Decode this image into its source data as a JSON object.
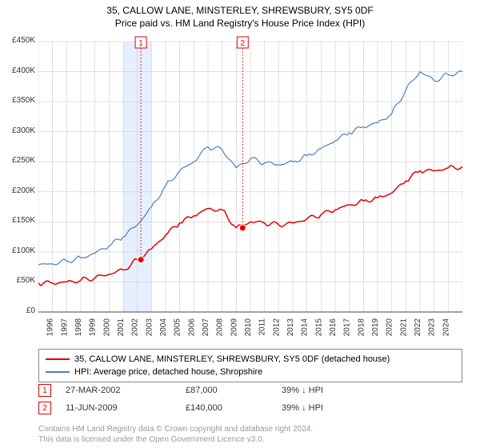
{
  "title": "35, CALLOW LANE, MINSTERLEY, SHREWSBURY, SY5 0DF",
  "subtitle": "Price paid vs. HM Land Registry's House Price Index (HPI)",
  "chart": {
    "type": "line",
    "background_color": "#ffffff",
    "grid_color": "#cccccc",
    "highlight_band_color": "#e6efff",
    "highlight_band": {
      "x_start": 2001,
      "x_end": 2003
    },
    "x_axis": {
      "min": 1995,
      "max": 2025,
      "tick_step": 1,
      "labels": [
        "1995",
        "1996",
        "1997",
        "1998",
        "1999",
        "2000",
        "2001",
        "2002",
        "2003",
        "2004",
        "2005",
        "2006",
        "2007",
        "2008",
        "2009",
        "2010",
        "2011",
        "2012",
        "2013",
        "2014",
        "2015",
        "2016",
        "2017",
        "2018",
        "2019",
        "2020",
        "2021",
        "2022",
        "2023",
        "2024"
      ],
      "fontsize": 10
    },
    "y_axis": {
      "min": 0,
      "max": 450000,
      "tick_step": 50000,
      "labels": [
        "£0",
        "£50K",
        "£100K",
        "£150K",
        "£200K",
        "£250K",
        "£300K",
        "£350K",
        "£400K",
        "£450K"
      ],
      "fontsize": 10
    },
    "series": [
      {
        "name": "35, CALLOW LANE, MINSTERLEY, SHREWSBURY, SY5 0DF (detached house)",
        "color": "#e60000",
        "line_width": 1.5,
        "x": [
          1995,
          1996,
          1997,
          1998,
          1999,
          2000,
          2001,
          2002,
          2003,
          2004,
          2005,
          2006,
          2007,
          2008,
          2009,
          2010,
          2011,
          2012,
          2013,
          2014,
          2015,
          2016,
          2017,
          2018,
          2019,
          2020,
          2021,
          2022,
          2023,
          2024,
          2025
        ],
        "y": [
          48000,
          48000,
          50000,
          53000,
          57000,
          63000,
          70000,
          87000,
          105000,
          128000,
          148000,
          160000,
          172000,
          170000,
          140000,
          150000,
          148000,
          145000,
          148000,
          155000,
          162000,
          170000,
          178000,
          185000,
          190000,
          198000,
          218000,
          235000,
          235000,
          240000,
          242000
        ]
      },
      {
        "name": "HPI: Average price, detached house, Shropshire",
        "color": "#4a7ec8",
        "line_width": 1.2,
        "x": [
          1995,
          1996,
          1997,
          1998,
          1999,
          2000,
          2001,
          2002,
          2003,
          2004,
          2005,
          2006,
          2007,
          2008,
          2009,
          2010,
          2011,
          2012,
          2013,
          2014,
          2015,
          2016,
          2017,
          2018,
          2019,
          2020,
          2021,
          2022,
          2023,
          2024,
          2025
        ],
        "y": [
          78000,
          80000,
          85000,
          90000,
          98000,
          110000,
          125000,
          145000,
          175000,
          210000,
          235000,
          250000,
          275000,
          270000,
          240000,
          255000,
          248000,
          245000,
          250000,
          260000,
          272000,
          285000,
          298000,
          308000,
          315000,
          330000,
          370000,
          400000,
          385000,
          395000,
          400000
        ]
      }
    ],
    "markers": [
      {
        "num": "1",
        "x": 2002.25,
        "y": 87000,
        "date": "27-MAR-2002",
        "price": "£87,000",
        "diff": "39% ↓ HPI",
        "color": "#e60000"
      },
      {
        "num": "2",
        "x": 2009.45,
        "y": 140000,
        "date": "11-JUN-2009",
        "price": "£140,000",
        "diff": "39% ↓ HPI",
        "color": "#e60000"
      }
    ]
  },
  "legend": {
    "items": [
      {
        "label": "35, CALLOW LANE, MINSTERLEY, SHREWSBURY, SY5 0DF (detached house)",
        "color": "#e60000"
      },
      {
        "label": "HPI: Average price, detached house, Shropshire",
        "color": "#4a7ec8"
      }
    ]
  },
  "footer": {
    "line1": "Contains HM Land Registry data © Crown copyright and database right 2024.",
    "line2": "This data is licensed under the Open Government Licence v3.0."
  }
}
